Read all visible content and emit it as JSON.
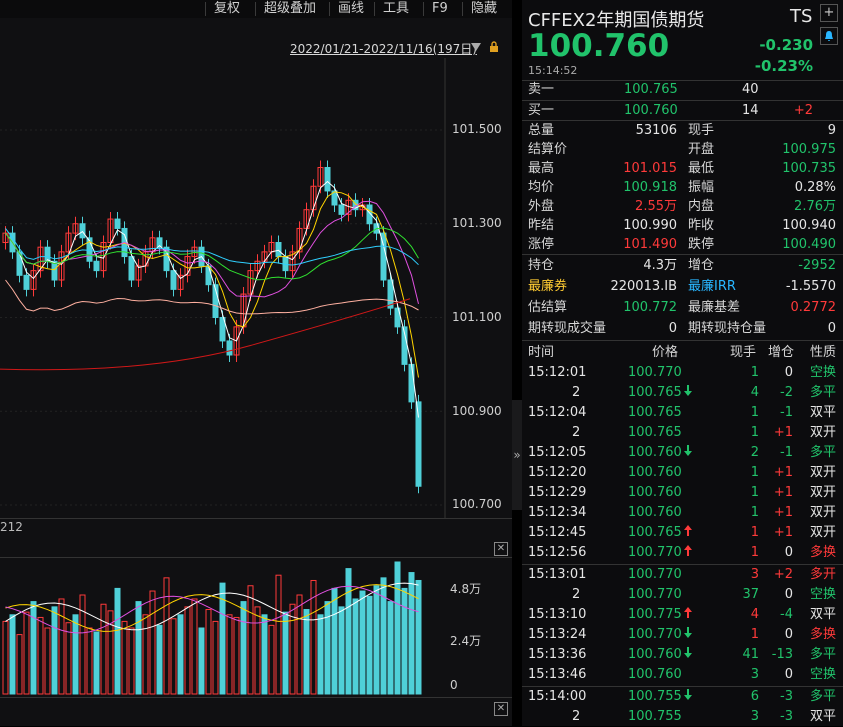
{
  "toolbar": {
    "items": [
      "复权",
      "超级叠加",
      "画线",
      "工具",
      "F9",
      "隐藏"
    ]
  },
  "date_range": "2022/01/21-2022/11/16(197日)",
  "price_axis": [
    "101.500",
    "101.300",
    "101.100",
    "100.900",
    "100.700"
  ],
  "code_label": "212",
  "volume_axis": [
    "4.8万",
    "2.4万",
    "0"
  ],
  "quote": {
    "title": "CFFEX2年期国债期货",
    "code": "TS",
    "last": "100.760",
    "change": "-0.230",
    "change_pct": "-0.23%",
    "time": "15:14:52",
    "sell1": {
      "label": "卖一",
      "price": "100.765",
      "vol": "40",
      "delta": ""
    },
    "buy1": {
      "label": "买一",
      "price": "100.760",
      "vol": "14",
      "delta": "+2"
    }
  },
  "stats": [
    {
      "l1": "总量",
      "v1": "53106",
      "c1": "white",
      "l2": "现手",
      "v2": "9",
      "c2": "white"
    },
    {
      "l1": "结算价",
      "v1": "",
      "c1": "white",
      "l2": "开盘",
      "v2": "100.975",
      "c2": "green"
    },
    {
      "l1": "最高",
      "v1": "101.015",
      "c1": "red",
      "l2": "最低",
      "v2": "100.735",
      "c2": "green"
    },
    {
      "l1": "均价",
      "v1": "100.918",
      "c1": "green",
      "l2": "振幅",
      "v2": "0.28%",
      "c2": "white"
    },
    {
      "l1": "外盘",
      "v1": "2.55万",
      "c1": "red",
      "l2": "内盘",
      "v2": "2.76万",
      "c2": "green"
    },
    {
      "l1": "昨结",
      "v1": "100.990",
      "c1": "white",
      "l2": "昨收",
      "v2": "100.940",
      "c2": "white"
    },
    {
      "l1": "涨停",
      "v1": "101.490",
      "c1": "red",
      "l2": "跌停",
      "v2": "100.490",
      "c2": "green"
    }
  ],
  "stats2": [
    {
      "l1": "持仓",
      "v1": "4.3万",
      "c1": "white",
      "l2": "增仓",
      "v2": "-2952",
      "c2": "green",
      "lc1": "lbl",
      "lc2": "lbl"
    },
    {
      "l1": "最廉券",
      "v1": "220013.IB",
      "c1": "white",
      "l2": "最廉IRR",
      "v2": "-1.5570",
      "c2": "white",
      "lc1": "gold",
      "lc2": "blue"
    },
    {
      "l1": "估结算",
      "v1": "100.772",
      "c1": "green",
      "l2": "最廉基差",
      "v2": "0.2772",
      "c2": "red",
      "lc1": "lbl",
      "lc2": "lbl"
    },
    {
      "l1": "期转现成交量",
      "v1": "0",
      "c1": "white",
      "l2": "期转现持仓量",
      "v2": "0",
      "c2": "white",
      "lc1": "lbl",
      "lc2": "lbl"
    }
  ],
  "ticks_header": [
    "时间",
    "价格",
    "现手",
    "增仓",
    "性质"
  ],
  "ticks": [
    {
      "t": "15:12:01",
      "p": "100.770",
      "arrow": "",
      "v": "1",
      "vc": "green",
      "d": "0",
      "dc": "white",
      "n": "空换",
      "nc": "green"
    },
    {
      "t": "2",
      "p": "100.765",
      "arrow": "down",
      "v": "4",
      "vc": "green",
      "d": "-2",
      "dc": "green",
      "n": "多平",
      "nc": "green"
    },
    {
      "t": "15:12:04",
      "p": "100.765",
      "arrow": "",
      "v": "1",
      "vc": "green",
      "d": "-1",
      "dc": "green",
      "n": "双平",
      "nc": "white"
    },
    {
      "t": "2",
      "p": "100.765",
      "arrow": "",
      "v": "1",
      "vc": "green",
      "d": "+1",
      "dc": "red",
      "n": "双开",
      "nc": "white"
    },
    {
      "t": "15:12:05",
      "p": "100.760",
      "arrow": "down",
      "v": "2",
      "vc": "green",
      "d": "-1",
      "dc": "green",
      "n": "多平",
      "nc": "green"
    },
    {
      "t": "15:12:20",
      "p": "100.760",
      "arrow": "",
      "v": "1",
      "vc": "green",
      "d": "+1",
      "dc": "red",
      "n": "双开",
      "nc": "white"
    },
    {
      "t": "15:12:29",
      "p": "100.760",
      "arrow": "",
      "v": "1",
      "vc": "green",
      "d": "+1",
      "dc": "red",
      "n": "双开",
      "nc": "white"
    },
    {
      "t": "15:12:34",
      "p": "100.760",
      "arrow": "",
      "v": "1",
      "vc": "green",
      "d": "+1",
      "dc": "red",
      "n": "双开",
      "nc": "white"
    },
    {
      "t": "15:12:45",
      "p": "100.765",
      "arrow": "up",
      "v": "1",
      "vc": "red",
      "d": "+1",
      "dc": "red",
      "n": "双开",
      "nc": "white"
    },
    {
      "t": "15:12:56",
      "p": "100.770",
      "arrow": "up",
      "v": "1",
      "vc": "red",
      "d": "0",
      "dc": "white",
      "n": "多换",
      "nc": "red"
    },
    {
      "t": "15:13:01",
      "p": "100.770",
      "arrow": "",
      "v": "3",
      "vc": "red",
      "d": "+2",
      "dc": "red",
      "n": "多开",
      "nc": "red"
    },
    {
      "t": "2",
      "p": "100.770",
      "arrow": "",
      "v": "37",
      "vc": "green",
      "d": "0",
      "dc": "white",
      "n": "空换",
      "nc": "green"
    },
    {
      "t": "15:13:10",
      "p": "100.775",
      "arrow": "up",
      "v": "4",
      "vc": "red",
      "d": "-4",
      "dc": "green",
      "n": "双平",
      "nc": "white"
    },
    {
      "t": "15:13:24",
      "p": "100.770",
      "arrow": "down",
      "v": "1",
      "vc": "red",
      "d": "0",
      "dc": "white",
      "n": "多换",
      "nc": "red"
    },
    {
      "t": "15:13:36",
      "p": "100.760",
      "arrow": "down",
      "v": "41",
      "vc": "green",
      "d": "-13",
      "dc": "green",
      "n": "多平",
      "nc": "green"
    },
    {
      "t": "15:13:46",
      "p": "100.760",
      "arrow": "",
      "v": "3",
      "vc": "green",
      "d": "0",
      "dc": "white",
      "n": "空换",
      "nc": "green"
    },
    {
      "t": "15:14:00",
      "p": "100.755",
      "arrow": "down",
      "v": "6",
      "vc": "green",
      "d": "-3",
      "dc": "green",
      "n": "多平",
      "nc": "green"
    },
    {
      "t": "2",
      "p": "100.755",
      "arrow": "",
      "v": "3",
      "vc": "green",
      "d": "-3",
      "dc": "green",
      "n": "双平",
      "nc": "white"
    }
  ],
  "colors": {
    "up": "#ff3a3a",
    "down": "#21c36b",
    "candle_down": "#4fd0d8",
    "ma1": "#ffffff",
    "ma2": "#ffd400",
    "ma3": "#e050e0",
    "ma4": "#30e030",
    "ma5": "#30d0ff",
    "ma6": "#ffb0a0",
    "ma7": "#d01818"
  }
}
